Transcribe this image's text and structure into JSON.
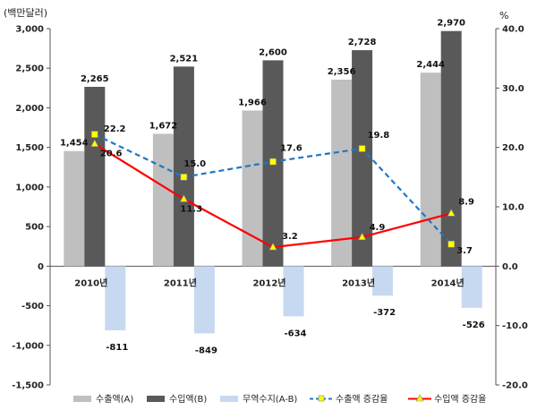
{
  "chart_data": {
    "type": "bar",
    "y_left_title": "(백만달러)",
    "y_right_title": "%",
    "categories": [
      "2010년",
      "2011년",
      "2012년",
      "2013년",
      "2014년"
    ],
    "ylim_left": [
      -1500,
      3000
    ],
    "ylim_right": [
      -20,
      40
    ],
    "yticks_left": [
      "3,000",
      "2,500",
      "2,000",
      "1,500",
      "1,000",
      "500",
      "0",
      "-500",
      "-1,000",
      "-1,500"
    ],
    "yticks_right": [
      "40.0",
      "30.0",
      "20.0",
      "10.0",
      "0.0",
      "-10.0",
      "-20.0"
    ],
    "series": [
      {
        "name": "수출액(A)",
        "kind": "bar",
        "color": "#bfbfbf",
        "values": [
          1454,
          1672,
          1966,
          2356,
          2444
        ],
        "labels": [
          "1,454",
          "1,672",
          "1,966",
          "2,356",
          "2,444"
        ]
      },
      {
        "name": "수입액(B)",
        "kind": "bar",
        "color": "#595959",
        "values": [
          2265,
          2521,
          2600,
          2728,
          2970
        ],
        "labels": [
          "2,265",
          "2,521",
          "2,600",
          "2,728",
          "2,970"
        ]
      },
      {
        "name": "무역수지(A-B)",
        "kind": "bar",
        "color": "#c6d9f1",
        "values": [
          -811,
          -849,
          -634,
          -372,
          -526
        ],
        "labels": [
          "-811",
          "-849",
          "-634",
          "-372",
          "-526"
        ]
      },
      {
        "name": "수출액 증감율",
        "kind": "line",
        "axis": "right",
        "color": "#1f77c4",
        "marker_color": "#ffff00",
        "dashed": true,
        "values": [
          22.2,
          15.0,
          17.6,
          19.8,
          3.7
        ],
        "labels": [
          "22.2",
          "15.0",
          "17.6",
          "19.8",
          "3.7"
        ]
      },
      {
        "name": "수입액 증감율",
        "kind": "line",
        "axis": "right",
        "color": "#ff0000",
        "marker_color": "#ffff00",
        "dashed": false,
        "values": [
          20.6,
          11.3,
          3.2,
          4.9,
          8.9
        ],
        "labels": [
          "20.6",
          "11.3",
          "3.2",
          "4.9",
          "8.9"
        ]
      }
    ],
    "grid": false,
    "legend_position": "bottom"
  }
}
